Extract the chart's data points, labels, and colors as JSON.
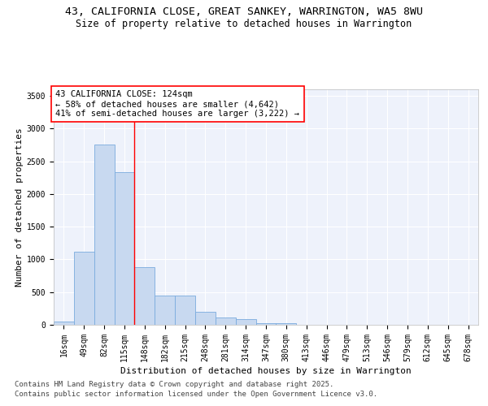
{
  "title": "43, CALIFORNIA CLOSE, GREAT SANKEY, WARRINGTON, WA5 8WU",
  "subtitle": "Size of property relative to detached houses in Warrington",
  "xlabel": "Distribution of detached houses by size in Warrington",
  "ylabel": "Number of detached properties",
  "categories": [
    "16sqm",
    "49sqm",
    "82sqm",
    "115sqm",
    "148sqm",
    "182sqm",
    "215sqm",
    "248sqm",
    "281sqm",
    "314sqm",
    "347sqm",
    "380sqm",
    "413sqm",
    "446sqm",
    "479sqm",
    "513sqm",
    "546sqm",
    "579sqm",
    "612sqm",
    "645sqm",
    "678sqm"
  ],
  "values": [
    50,
    1120,
    2760,
    2340,
    880,
    445,
    445,
    195,
    110,
    90,
    30,
    30,
    5,
    0,
    0,
    0,
    0,
    0,
    0,
    0,
    0
  ],
  "bar_color": "#c8d9f0",
  "bar_edgecolor": "#7aabde",
  "vline_color": "red",
  "annotation_text": "43 CALIFORNIA CLOSE: 124sqm\n← 58% of detached houses are smaller (4,642)\n41% of semi-detached houses are larger (3,222) →",
  "annotation_box_edgecolor": "red",
  "annotation_box_facecolor": "white",
  "ylim": [
    0,
    3600
  ],
  "yticks": [
    0,
    500,
    1000,
    1500,
    2000,
    2500,
    3000,
    3500
  ],
  "background_color": "#eef2fb",
  "grid_color": "white",
  "footer_line1": "Contains HM Land Registry data © Crown copyright and database right 2025.",
  "footer_line2": "Contains public sector information licensed under the Open Government Licence v3.0.",
  "title_fontsize": 9.5,
  "subtitle_fontsize": 8.5,
  "axis_label_fontsize": 8,
  "tick_fontsize": 7,
  "annotation_fontsize": 7.5,
  "footer_fontsize": 6.5
}
